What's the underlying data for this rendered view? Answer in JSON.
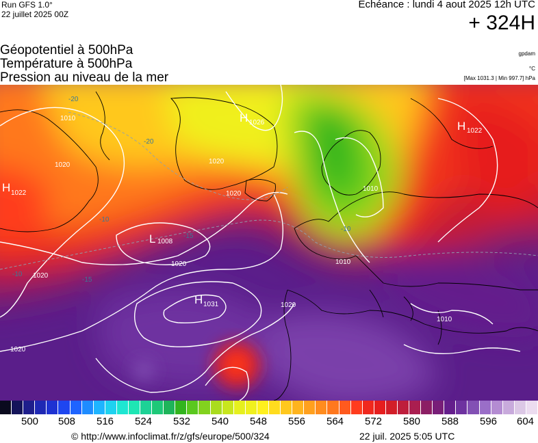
{
  "header": {
    "run_title": "Run GFS 1.0°",
    "run_date": "22 juillet 2025 00Z",
    "echeance": "Echéance : lundi 4 aout 2025 12h UTC",
    "horizon": "+ 324H"
  },
  "layers": {
    "geopotential": "Géopotentiel à 500hPa",
    "temperature": "Température à 500hPa",
    "pressure": "Pression au niveau de la mer"
  },
  "units": {
    "geopotential": "gpdam",
    "temperature": "°C",
    "pressure_range": "[Max 1031.3 | Min 997.7] hPa"
  },
  "map": {
    "isobars": [
      "1010",
      "1020",
      "1020",
      "1020",
      "1020",
      "1020",
      "1020",
      "1020",
      "1010",
      "1010",
      "1010"
    ],
    "temperature_labels": [
      "-20",
      "-20",
      "-10",
      "-15",
      "-10",
      "-15",
      "-10"
    ],
    "pressure_centers": [
      {
        "type": "H",
        "value": "1026"
      },
      {
        "type": "H",
        "value": "1022"
      },
      {
        "type": "H",
        "value": "1022"
      },
      {
        "type": "L",
        "value": "1008"
      },
      {
        "type": "H",
        "value": "1031"
      }
    ]
  },
  "scale": {
    "colors": [
      "#0a0a1e",
      "#14145a",
      "#1e1e8c",
      "#1e28b4",
      "#1e32d2",
      "#1e46f0",
      "#1e64ff",
      "#1e8cff",
      "#1eb4ff",
      "#1ed2f0",
      "#1ee6d2",
      "#1ee6b4",
      "#1ed296",
      "#1ec878",
      "#1eb45a",
      "#32b41e",
      "#5ac81e",
      "#82d21e",
      "#aadc1e",
      "#c8e61e",
      "#e6f01e",
      "#f0f01e",
      "#fff01e",
      "#ffdc1e",
      "#ffc81e",
      "#ffb41e",
      "#ffa01e",
      "#ff8c1e",
      "#ff781e",
      "#ff5a1e",
      "#ff3c1e",
      "#f0281e",
      "#e61e1e",
      "#d21e28",
      "#be1e3c",
      "#aa1e50",
      "#8c1e64",
      "#781e78",
      "#641e8c",
      "#6e32a0",
      "#8250b4",
      "#9a6ec8",
      "#b48cd2",
      "#c8aadc",
      "#dcc8e6",
      "#ecdcf0"
    ],
    "labels": [
      "500",
      "508",
      "516",
      "524",
      "532",
      "540",
      "548",
      "556",
      "564",
      "572",
      "580",
      "588",
      "596",
      "604"
    ]
  },
  "footer": {
    "copyright": "© http://www.infoclimat.fr/z/gfs/europe/500/324",
    "generated": "22 juil. 2025  5:05 UTC"
  }
}
